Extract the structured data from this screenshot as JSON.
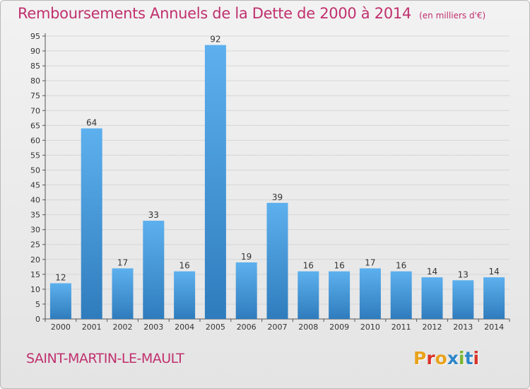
{
  "header": {
    "title": "Remboursements Annuels de la Dette de 2000 à 2014",
    "unit": "(en milliers d'€)"
  },
  "footer": {
    "commune": "SAINT-MARTIN-LE-MAULT",
    "logo": [
      "P",
      "r",
      "o",
      "x",
      "i",
      "t",
      "i"
    ],
    "logo_colors": [
      "#e8a21c",
      "#d8342b",
      "#e8a21c",
      "#2e86c9",
      "#79b531",
      "#2e86c9",
      "#d8342b"
    ]
  },
  "colors": {
    "title": "#c0306e",
    "bar_top": "#5db0ee",
    "bar_bottom": "#2f7cbd",
    "grid": "#d6d6d6"
  },
  "chart_data": {
    "type": "bar",
    "title": "Remboursements Annuels de la Dette de 2000 à 2014",
    "ylabel": "(en milliers d'€)",
    "categories": [
      "2000",
      "2001",
      "2002",
      "2003",
      "2004",
      "2005",
      "2006",
      "2007",
      "2008",
      "2009",
      "2010",
      "2011",
      "2012",
      "2013",
      "2014"
    ],
    "values": [
      12,
      64,
      17,
      33,
      16,
      92,
      19,
      39,
      16,
      16,
      17,
      16,
      14,
      13,
      14
    ],
    "ylim": [
      0,
      95
    ],
    "ytick_step": 5,
    "grid": true,
    "data_labels": true
  }
}
